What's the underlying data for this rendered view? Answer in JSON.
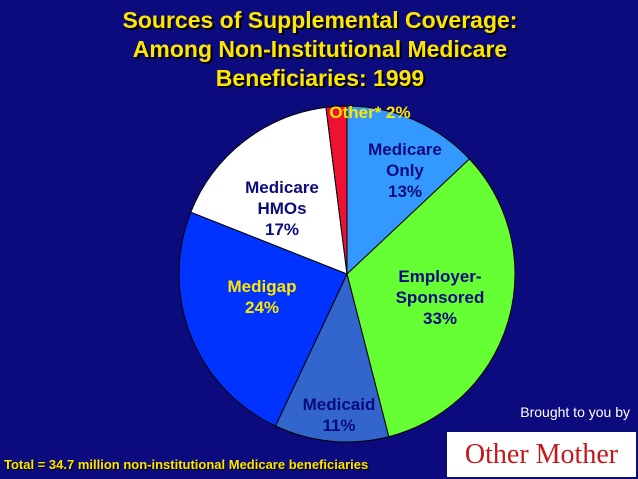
{
  "slide": {
    "title_lines": [
      "Sources of Supplemental Coverage:",
      "Among Non-Institutional Medicare",
      "Beneficiaries:  1999"
    ],
    "footer": "Total = 34.7 million non-institutional Medicare beneficiaries",
    "credit": "Brought to you by",
    "logo_text": "Other Mother",
    "colors": {
      "background": "#0b0b7e",
      "title": "#ffe600"
    }
  },
  "chart_data": {
    "type": "pie",
    "title": "Sources of Supplemental Coverage: Among Non-Institutional Medicare Beneficiaries:  1999",
    "unit": "%",
    "start_angle_deg": 0,
    "direction": "clockwise",
    "slices": [
      {
        "name": "Medicare Only",
        "value": 13,
        "label_lines": [
          "Medicare",
          "Only",
          "13%"
        ],
        "color": "#3399ff",
        "label_color": "#0b0b7e"
      },
      {
        "name": "Employer-Sponsored",
        "value": 33,
        "label_lines": [
          "Employer-",
          "Sponsored",
          "33%"
        ],
        "color": "#66ff33",
        "label_color": "#0b0b7e"
      },
      {
        "name": "Medicaid",
        "value": 11,
        "label_lines": [
          "Medicaid",
          "11%"
        ],
        "color": "#3366cc",
        "label_color": "#0b0b7e"
      },
      {
        "name": "Medigap",
        "value": 24,
        "label_lines": [
          "Medigap",
          "24%"
        ],
        "color": "#0033ff",
        "label_color": "#ffe600"
      },
      {
        "name": "Medicare HMOs",
        "value": 17,
        "label_lines": [
          "Medicare",
          "HMOs",
          "17%"
        ],
        "color": "#ffffff",
        "label_color": "#0b0b7e"
      },
      {
        "name": "Other*",
        "value": 2,
        "label_lines": [
          "Other* 2%"
        ],
        "color": "#ee1133",
        "label_color": "#ffe600"
      }
    ]
  }
}
